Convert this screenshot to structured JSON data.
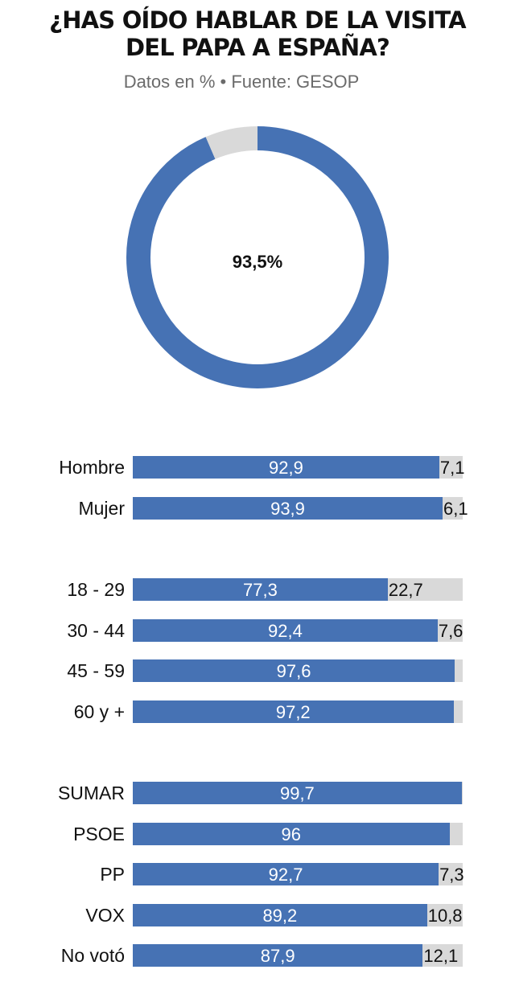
{
  "header": {
    "title_line1": "¿HAS OÍDO HABLAR DE LA VISITA",
    "title_line2": "DEL PAPA A ESPAÑA?",
    "subtitle": "Datos en % • Fuente: GESOP"
  },
  "colors": {
    "yes": "#4672b4",
    "no": "#d9d9d9"
  },
  "chart_data": [
    {
      "type": "pie",
      "title": "¿HAS OÍDO HABLAR DE LA VISITA DEL PAPA A ESPAÑA?",
      "subtitle": "Datos en % • Fuente: GESOP",
      "values": [
        93.5,
        6.5
      ],
      "center_label": "93,5%"
    },
    {
      "type": "bar",
      "orientation": "horizontal",
      "stacked": true,
      "groups": [
        {
          "rows": [
            {
              "category": "Hombre",
              "yes": 92.9,
              "no": 7.1,
              "yes_label": "92,9",
              "no_label": "7,1"
            },
            {
              "category": "Mujer",
              "yes": 93.9,
              "no": 6.1,
              "yes_label": "93,9",
              "no_label": "6,1"
            }
          ]
        },
        {
          "rows": [
            {
              "category": "18 - 29",
              "yes": 77.3,
              "no": 22.7,
              "yes_label": "77,3",
              "no_label": "22,7"
            },
            {
              "category": "30 - 44",
              "yes": 92.4,
              "no": 7.6,
              "yes_label": "92,4",
              "no_label": "7,6"
            },
            {
              "category": "45 - 59",
              "yes": 97.6,
              "no": 2.4,
              "yes_label": "97,6",
              "no_label": ""
            },
            {
              "category": "60 y +",
              "yes": 97.2,
              "no": 2.8,
              "yes_label": "97,2",
              "no_label": ""
            }
          ]
        },
        {
          "rows": [
            {
              "category": "SUMAR",
              "yes": 99.7,
              "no": 0.3,
              "yes_label": "99,7",
              "no_label": ""
            },
            {
              "category": "PSOE",
              "yes": 96,
              "no": 4,
              "yes_label": "96",
              "no_label": ""
            },
            {
              "category": "PP",
              "yes": 92.7,
              "no": 7.3,
              "yes_label": "92,7",
              "no_label": "7,3"
            },
            {
              "category": "VOX",
              "yes": 89.2,
              "no": 10.8,
              "yes_label": "89,2",
              "no_label": "10,8"
            },
            {
              "category": "No votó",
              "yes": 87.9,
              "no": 12.1,
              "yes_label": "87,9",
              "no_label": "12,1"
            }
          ]
        }
      ],
      "xlim": [
        0,
        100
      ]
    }
  ]
}
